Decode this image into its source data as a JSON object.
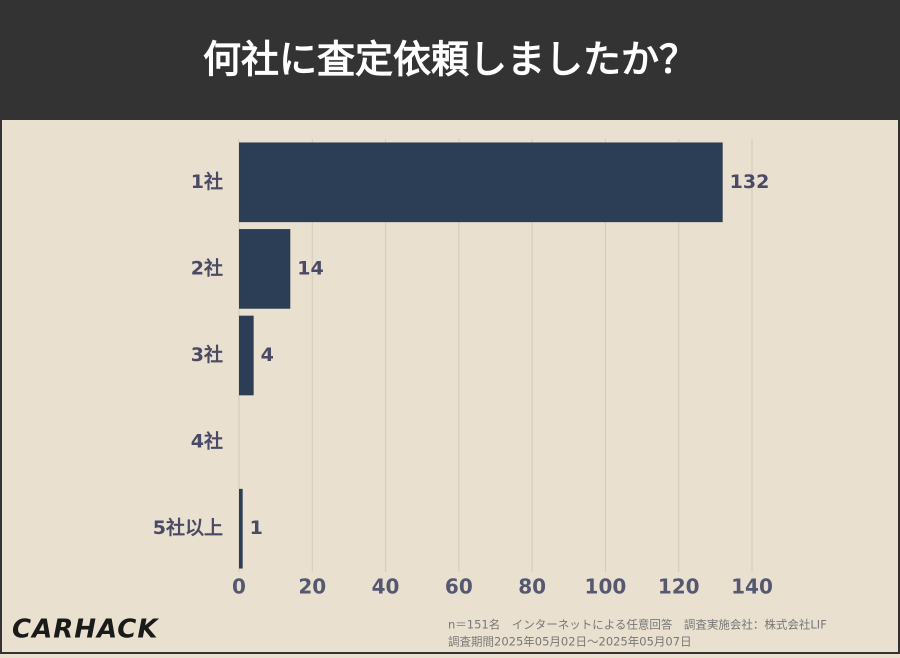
{
  "chart_data": {
    "type": "hbar",
    "title": "何社に査定依頼しましたか？",
    "categories": [
      "1社",
      "2社",
      "3社",
      "4社",
      "5社以上"
    ],
    "values": [
      132,
      14,
      4,
      null,
      1
    ],
    "color": "#2c3e55",
    "xlim": [
      0,
      140
    ],
    "xticks": [
      0,
      20,
      40,
      60,
      80,
      100,
      120,
      140
    ],
    "grid": true,
    "logo": "CARHACK",
    "notes": [
      "n＝151名　インターネットによる任意回答　調査実施会社：株式会社LIF",
      "調査期間2025年05月02日〜2025年05月07日"
    ]
  }
}
